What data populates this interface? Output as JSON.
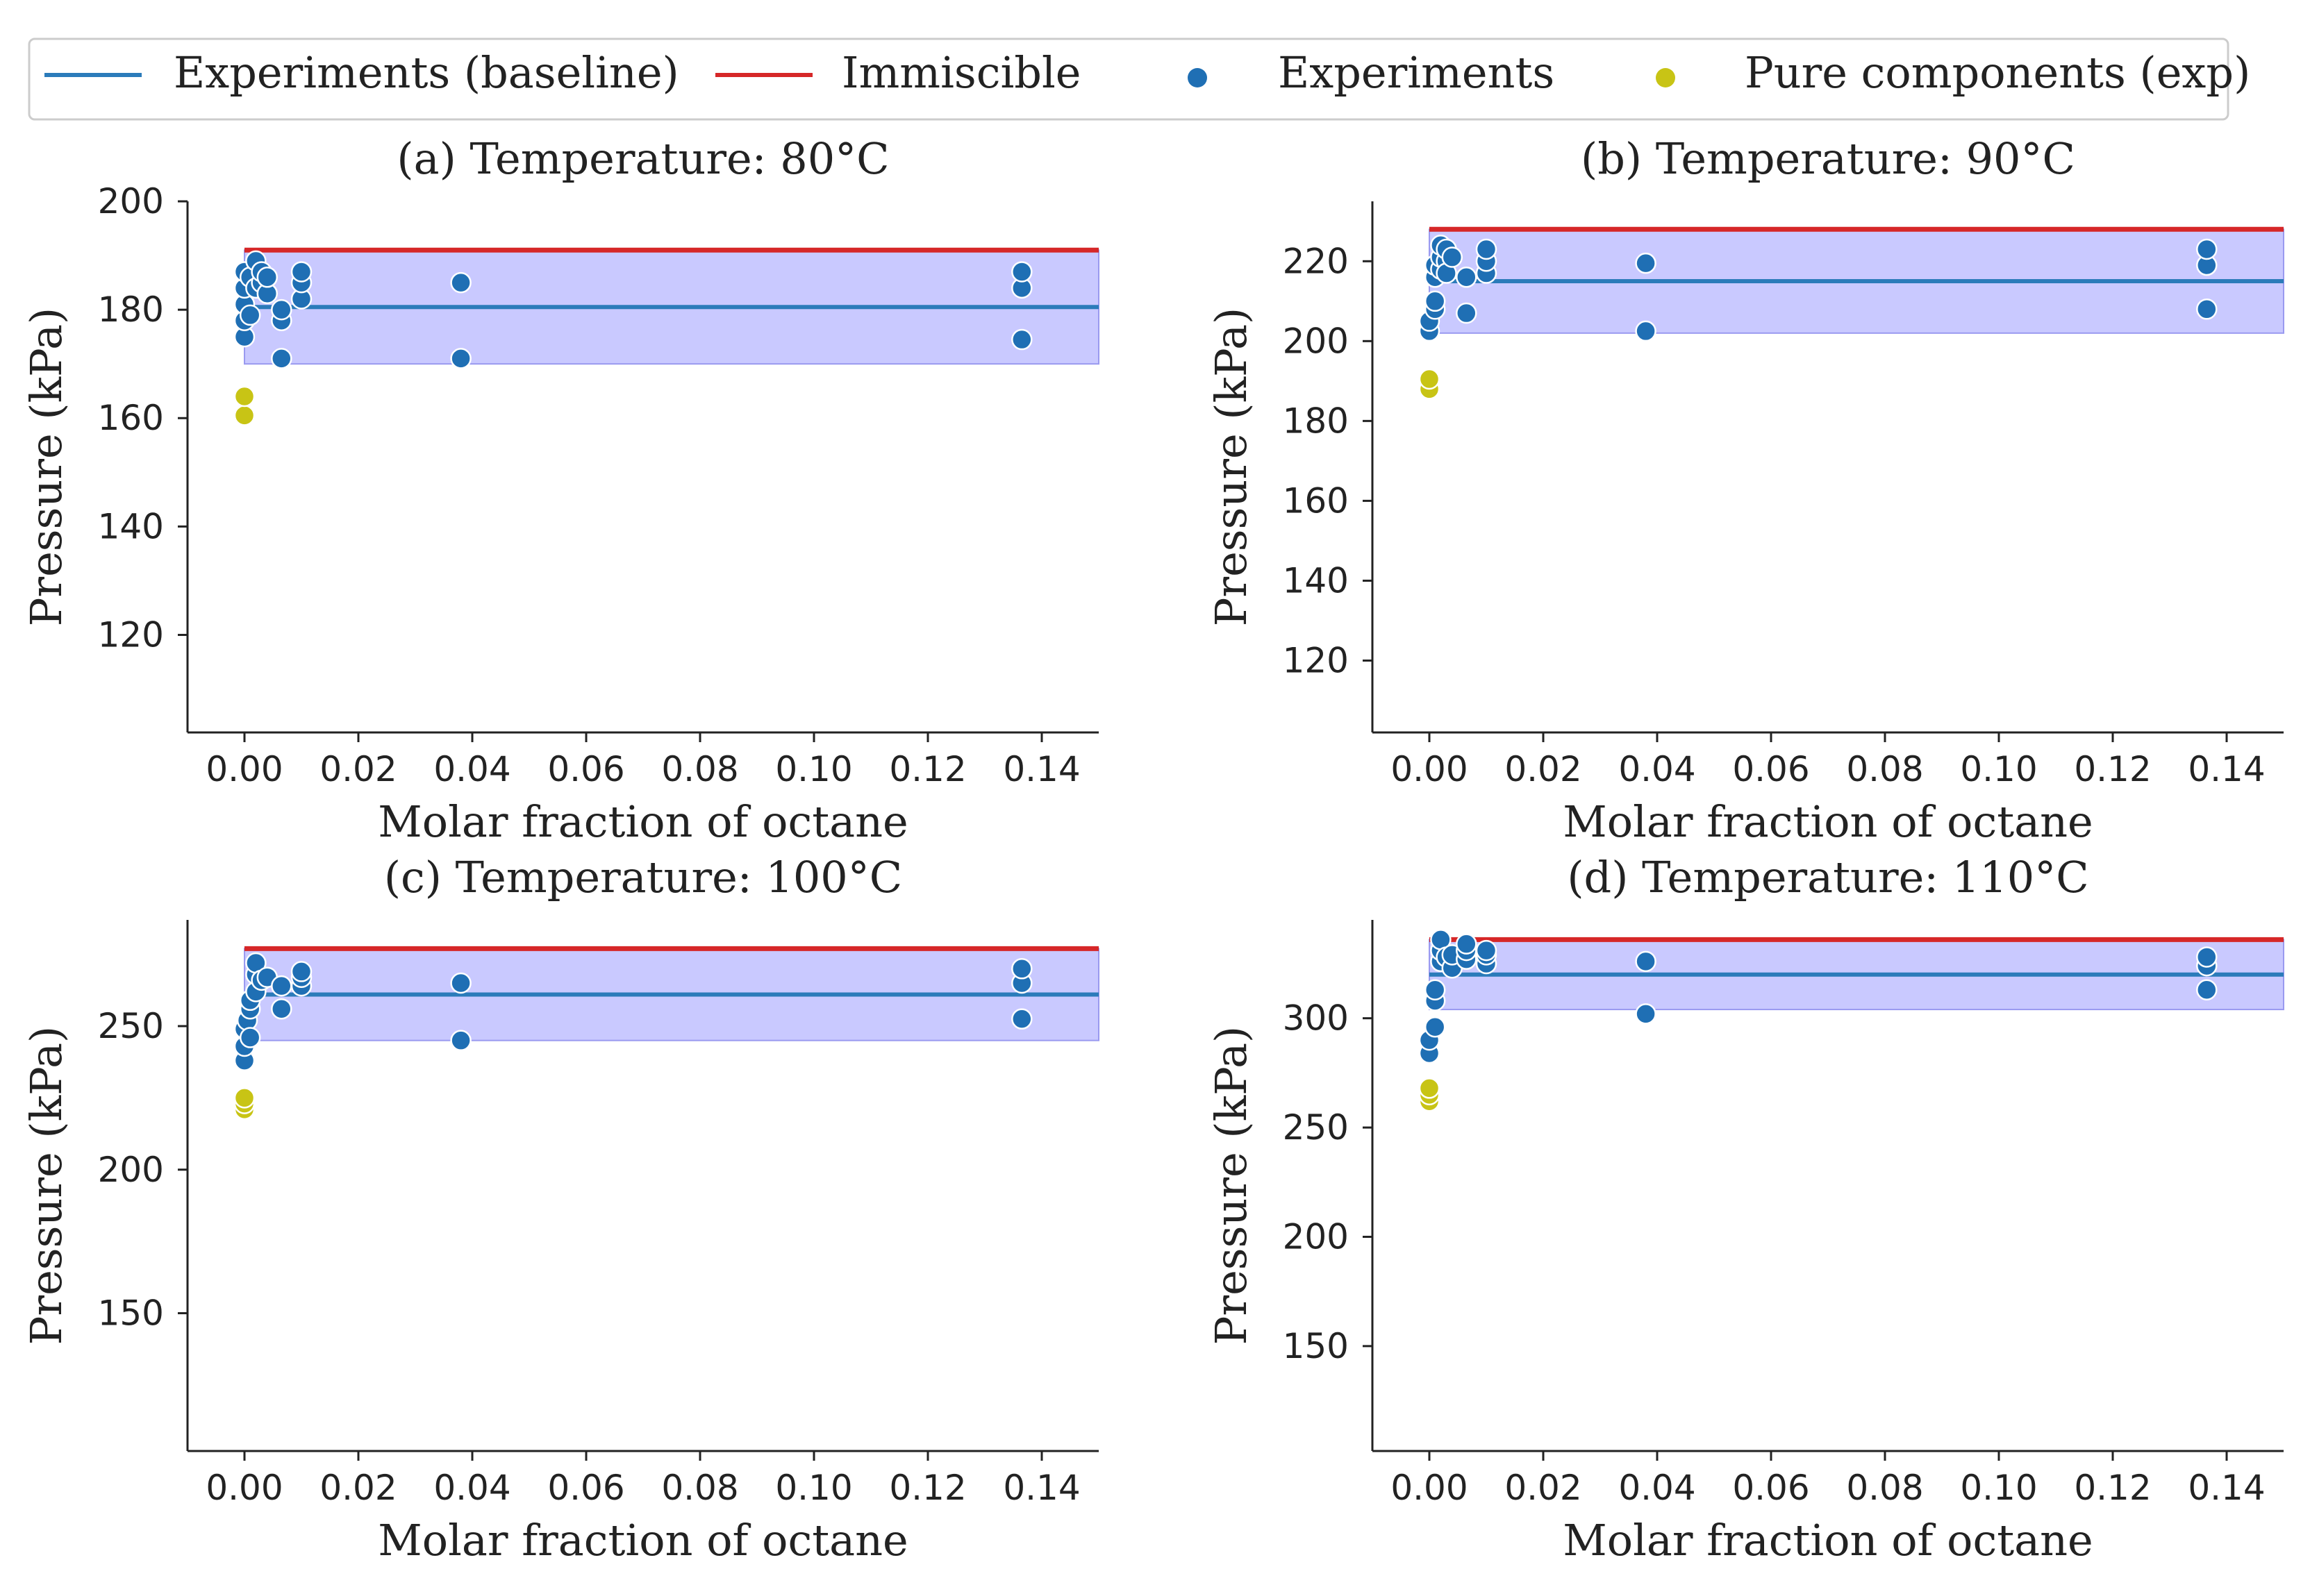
{
  "legend": {
    "items": [
      {
        "label": "Experiments (baseline)",
        "kind": "line",
        "color": "#2b7bba"
      },
      {
        "label": "Immiscible",
        "kind": "line",
        "color": "#d62728"
      },
      {
        "label": "Experiments",
        "kind": "dot",
        "color": "#1f6fb4"
      },
      {
        "label": "Pure components (exp)",
        "kind": "dot",
        "color": "#c8c415"
      }
    ]
  },
  "colors": {
    "baseline": "#2b7bba",
    "immiscible": "#d62728",
    "experiments": "#1f6fb4",
    "pure": "#c8c415",
    "band_fill": "#c9c9ff",
    "band_edge": "#9a9af0"
  },
  "chart_data": [
    {
      "type": "scatter",
      "title": "(a) Temperature: 80°C",
      "xlabel": "Molar fraction of octane",
      "ylabel": "Pressure (kPa)",
      "xlim": [
        -0.01,
        0.15
      ],
      "ylim": [
        102,
        200
      ],
      "xticks": [
        "0.00",
        "0.02",
        "0.04",
        "0.06",
        "0.08",
        "0.10",
        "0.12",
        "0.14"
      ],
      "yticks": [
        120,
        140,
        160,
        180,
        200
      ],
      "baseline": 180.5,
      "immiscible": 191,
      "band": [
        170,
        191
      ],
      "experiments": [
        [
          0,
          175
        ],
        [
          0,
          178
        ],
        [
          0,
          181
        ],
        [
          0,
          184
        ],
        [
          0,
          187
        ],
        [
          0.001,
          179
        ],
        [
          0.001,
          186
        ],
        [
          0.002,
          189
        ],
        [
          0.002,
          184
        ],
        [
          0.003,
          185
        ],
        [
          0.003,
          187
        ],
        [
          0.004,
          183
        ],
        [
          0.004,
          186
        ],
        [
          0.0065,
          171
        ],
        [
          0.0065,
          178
        ],
        [
          0.0065,
          180
        ],
        [
          0.01,
          182
        ],
        [
          0.01,
          185
        ],
        [
          0.01,
          187
        ],
        [
          0.038,
          171
        ],
        [
          0.038,
          185
        ],
        [
          0.1365,
          174.5
        ],
        [
          0.1365,
          184
        ],
        [
          0.1365,
          187
        ]
      ],
      "pure": [
        [
          0,
          160.5
        ],
        [
          0,
          164
        ]
      ]
    },
    {
      "type": "scatter",
      "title": "(b) Temperature: 90°C",
      "xlabel": "Molar fraction of octane",
      "ylabel": "Pressure (kPa)",
      "xlim": [
        -0.01,
        0.15
      ],
      "ylim": [
        102,
        235
      ],
      "xticks": [
        "0.00",
        "0.02",
        "0.04",
        "0.06",
        "0.08",
        "0.10",
        "0.12",
        "0.14"
      ],
      "yticks": [
        120,
        140,
        160,
        180,
        200,
        220
      ],
      "baseline": 215,
      "immiscible": 228,
      "band": [
        202,
        228
      ],
      "experiments": [
        [
          0,
          202.5
        ],
        [
          0,
          205
        ],
        [
          0.001,
          208
        ],
        [
          0.001,
          210
        ],
        [
          0.001,
          216
        ],
        [
          0.001,
          219
        ],
        [
          0.002,
          218
        ],
        [
          0.002,
          221
        ],
        [
          0.002,
          224
        ],
        [
          0.003,
          220
        ],
        [
          0.003,
          223
        ],
        [
          0.003,
          217
        ],
        [
          0.004,
          221
        ],
        [
          0.0065,
          207
        ],
        [
          0.0065,
          216
        ],
        [
          0.01,
          217
        ],
        [
          0.01,
          220
        ],
        [
          0.01,
          223
        ],
        [
          0.038,
          202.5
        ],
        [
          0.038,
          219.5
        ],
        [
          0.1365,
          208
        ],
        [
          0.1365,
          219
        ],
        [
          0.1365,
          223
        ]
      ],
      "pure": [
        [
          0,
          188
        ],
        [
          0,
          190.5
        ]
      ]
    },
    {
      "type": "scatter",
      "title": "(c) Temperature: 100°C",
      "xlabel": "Molar fraction of octane",
      "ylabel": "Pressure (kPa)",
      "xlim": [
        -0.01,
        0.15
      ],
      "ylim": [
        102,
        287
      ],
      "xticks": [
        "0.00",
        "0.02",
        "0.04",
        "0.06",
        "0.08",
        "0.10",
        "0.12",
        "0.14"
      ],
      "yticks": [
        150,
        200,
        250
      ],
      "baseline": 261,
      "immiscible": 277,
      "band": [
        245,
        277
      ],
      "experiments": [
        [
          0,
          238
        ],
        [
          0,
          243
        ],
        [
          0,
          249
        ],
        [
          0.0005,
          252
        ],
        [
          0.001,
          246
        ],
        [
          0.001,
          256
        ],
        [
          0.001,
          259
        ],
        [
          0.002,
          262
        ],
        [
          0.002,
          268
        ],
        [
          0.002,
          272
        ],
        [
          0.003,
          266
        ],
        [
          0.004,
          267
        ],
        [
          0.0065,
          256
        ],
        [
          0.0065,
          264
        ],
        [
          0.01,
          264
        ],
        [
          0.01,
          267
        ],
        [
          0.01,
          269
        ],
        [
          0.038,
          245
        ],
        [
          0.038,
          265
        ],
        [
          0.1365,
          252.5
        ],
        [
          0.1365,
          265
        ],
        [
          0.1365,
          270
        ]
      ],
      "pure": [
        [
          0,
          221
        ],
        [
          0,
          223
        ],
        [
          0,
          225
        ]
      ]
    },
    {
      "type": "scatter",
      "title": "(d) Temperature: 110°C",
      "xlabel": "Molar fraction of octane",
      "ylabel": "Pressure (kPa)",
      "xlim": [
        -0.01,
        0.15
      ],
      "ylim": [
        102,
        345
      ],
      "xticks": [
        "0.00",
        "0.02",
        "0.04",
        "0.06",
        "0.08",
        "0.10",
        "0.12",
        "0.14"
      ],
      "yticks": [
        150,
        200,
        250,
        300
      ],
      "baseline": 320,
      "immiscible": 336,
      "band": [
        304,
        336
      ],
      "experiments": [
        [
          0,
          284
        ],
        [
          0,
          290
        ],
        [
          0.001,
          296
        ],
        [
          0.001,
          308
        ],
        [
          0.001,
          313
        ],
        [
          0.002,
          326
        ],
        [
          0.002,
          331
        ],
        [
          0.002,
          336
        ],
        [
          0.003,
          328
        ],
        [
          0.004,
          323
        ],
        [
          0.004,
          329
        ],
        [
          0.0065,
          327
        ],
        [
          0.0065,
          331
        ],
        [
          0.0065,
          334
        ],
        [
          0.01,
          325
        ],
        [
          0.01,
          329
        ],
        [
          0.01,
          331
        ],
        [
          0.038,
          302
        ],
        [
          0.038,
          326
        ],
        [
          0.1365,
          313
        ],
        [
          0.1365,
          324
        ],
        [
          0.1365,
          328
        ]
      ],
      "pure": [
        [
          0,
          262
        ],
        [
          0,
          265
        ],
        [
          0,
          268
        ]
      ]
    }
  ]
}
